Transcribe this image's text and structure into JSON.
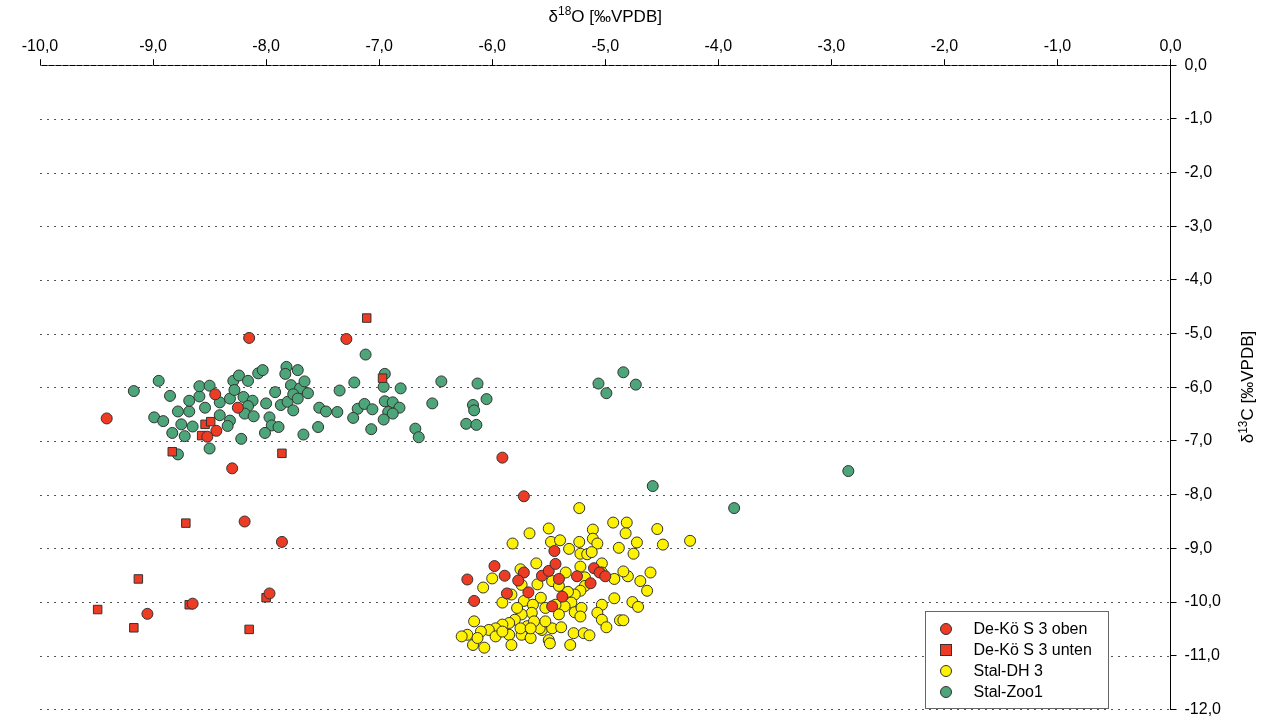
{
  "chart_data": {
    "type": "scatter",
    "xlabel": "δ$^{18}$O [‰VPDB]",
    "ylabel": "δ$^{13}$C [‰VPDB]",
    "xlim": [
      -10,
      0
    ],
    "ylim": [
      -12,
      0
    ],
    "xticks": [
      {
        "value": -10,
        "label": "-10,0"
      },
      {
        "value": -9,
        "label": "-9,0"
      },
      {
        "value": -8,
        "label": "-8,0"
      },
      {
        "value": -7,
        "label": "-7,0"
      },
      {
        "value": -6,
        "label": "-6,0"
      },
      {
        "value": -5,
        "label": "-5,0"
      },
      {
        "value": -4,
        "label": "-4,0"
      },
      {
        "value": -3,
        "label": "-3,0"
      },
      {
        "value": -2,
        "label": "-2,0"
      },
      {
        "value": -1,
        "label": "-1,0"
      },
      {
        "value": 0,
        "label": "0,0"
      }
    ],
    "yticks": [
      {
        "value": 0,
        "label": "0,0"
      },
      {
        "value": -1,
        "label": "-1,0"
      },
      {
        "value": -2,
        "label": "-2,0"
      },
      {
        "value": -3,
        "label": "-3,0"
      },
      {
        "value": -4,
        "label": "-4,0"
      },
      {
        "value": -5,
        "label": "-5,0"
      },
      {
        "value": -6,
        "label": "-6,0"
      },
      {
        "value": -7,
        "label": "-7,0"
      },
      {
        "value": -8,
        "label": "-8,0"
      },
      {
        "value": -9,
        "label": "-9,0"
      },
      {
        "value": -10,
        "label": "-10,0"
      },
      {
        "value": -11,
        "label": "-11,0"
      },
      {
        "value": -12,
        "label": "-12,0"
      }
    ],
    "grid": "y",
    "legend": "bottom right",
    "series": [
      {
        "name": "De-Kö S 3 oben",
        "color": "#ee3b24",
        "marker": "circle",
        "x": [
          -8.15,
          -7.29,
          -9.41,
          -8.45,
          -8.25,
          -8.44,
          -8.52,
          -8.3,
          -8.19,
          -7.86,
          -7.97,
          -8.65,
          -9.05,
          -5.91,
          -5.72,
          -5.45,
          -5.98,
          -6.22,
          -6.16,
          -5.89,
          -5.72,
          -5.77,
          -5.87,
          -5.68,
          -5.56,
          -5.5,
          -5.44,
          -5.41,
          -5.38,
          -5.47,
          -5.25,
          -5.1,
          -5.05,
          -5.0,
          -5.13
        ],
        "values": [
          -5.08,
          -5.1,
          -6.58,
          -6.13,
          -6.38,
          -6.81,
          -6.92,
          -7.51,
          -8.5,
          -8.88,
          -9.84,
          -10.03,
          -10.22,
          -7.31,
          -8.03,
          -9.05,
          -9.33,
          -9.58,
          -9.98,
          -9.51,
          -9.45,
          -9.6,
          -9.84,
          -9.82,
          -9.51,
          -9.42,
          -9.29,
          -9.57,
          -9.9,
          -10.08,
          -9.52,
          -9.37,
          -9.45,
          -9.52,
          -9.65
        ]
      },
      {
        "name": "De-Kö S 3 unten",
        "color": "#ee3b24",
        "marker": "square",
        "x": [
          -7.11,
          -6.97,
          -8.54,
          -8.49,
          -8.57,
          -8.83,
          -7.86,
          -8.71,
          -9.13,
          -8.68,
          -8.0,
          -9.49,
          -9.17,
          -8.15
        ],
        "values": [
          -4.71,
          -5.83,
          -6.69,
          -6.64,
          -6.9,
          -7.2,
          -7.23,
          -8.53,
          -9.57,
          -10.05,
          -9.92,
          -10.14,
          -10.48,
          -10.51
        ]
      },
      {
        "name": "Stal-DH 3",
        "color": "#fff200",
        "marker": "circle",
        "x": [
          -5.23,
          -4.93,
          -4.81,
          -4.54,
          -4.25,
          -4.49,
          -4.82,
          -4.72,
          -4.75,
          -4.88,
          -5.11,
          -5.5,
          -5.67,
          -5.82,
          -5.48,
          -5.4,
          -5.23,
          -5.32,
          -5.11,
          -5.07,
          -5.22,
          -5.16,
          -5.12,
          -5.03,
          -5.03,
          -4.92,
          -4.8,
          -4.84,
          -4.6,
          -4.69,
          -4.63,
          -4.92,
          -4.76,
          -4.71,
          -5.03,
          -5.07,
          -5.03,
          -4.99,
          -4.87,
          -4.84,
          -5.61,
          -5.75,
          -5.74,
          -6.0,
          -6.08,
          -5.91,
          -5.83,
          -5.72,
          -5.57,
          -5.6,
          -5.47,
          -5.41,
          -5.35,
          -5.22,
          -5.18,
          -5.18,
          -5.22,
          -5.27,
          -5.33,
          -5.3,
          -5.27,
          -5.21,
          -5.22,
          -5.36,
          -5.44,
          -5.53,
          -5.64,
          -5.65,
          -5.74,
          -5.8,
          -5.85,
          -5.91,
          -5.97,
          -6.03,
          -6.1,
          -6.16,
          -6.22,
          -6.27,
          -6.17,
          -6.07,
          -5.97,
          -5.85,
          -5.83,
          -5.74,
          -5.66,
          -5.56,
          -5.47,
          -5.39,
          -5.28,
          -5.19,
          -5.14,
          -5.5,
          -5.49,
          -5.58,
          -5.69,
          -5.31,
          -5.53,
          -5.63,
          -5.41,
          -5.75,
          -5.91,
          -6.13,
          -5.78,
          -5.66
        ],
        "values": [
          -8.25,
          -8.52,
          -8.52,
          -8.64,
          -8.86,
          -8.93,
          -8.72,
          -8.89,
          -9.1,
          -8.99,
          -8.65,
          -8.63,
          -8.72,
          -8.91,
          -8.88,
          -8.85,
          -8.88,
          -9.01,
          -8.82,
          -8.91,
          -9.1,
          -9.11,
          -9.07,
          -9.28,
          -9.45,
          -9.57,
          -9.52,
          -9.43,
          -9.45,
          -9.61,
          -9.79,
          -9.93,
          -10.0,
          -10.09,
          -10.05,
          -10.2,
          -10.33,
          -10.47,
          -10.34,
          -10.34,
          -9.28,
          -9.39,
          -9.68,
          -9.56,
          -9.73,
          -10.01,
          -9.86,
          -9.98,
          -9.92,
          -9.67,
          -9.61,
          -9.7,
          -9.45,
          -9.34,
          -9.54,
          -9.7,
          -9.79,
          -9.86,
          -9.81,
          -10.01,
          -10.19,
          -10.11,
          -10.27,
          -10.08,
          -10.05,
          -10.11,
          -10.05,
          -10.2,
          -10.23,
          -10.33,
          -10.39,
          -10.42,
          -10.49,
          -10.52,
          -10.55,
          -10.36,
          -10.61,
          -10.64,
          -10.8,
          -10.85,
          -10.64,
          -10.61,
          -10.8,
          -10.61,
          -10.67,
          -10.52,
          -10.49,
          -10.47,
          -10.58,
          -10.58,
          -10.62,
          -10.71,
          -10.77,
          -10.49,
          -10.45,
          -10.8,
          -10.36,
          -10.36,
          -10.23,
          -10.49,
          -10.55,
          -10.67,
          -10.11,
          -10.49
        ]
      },
      {
        "name": "Stal-Zoo1",
        "color": "#4da57a",
        "marker": "circle",
        "x": [
          -7.12,
          -8.95,
          -9.17,
          -8.85,
          -8.99,
          -8.91,
          -8.83,
          -8.72,
          -8.75,
          -8.78,
          -8.68,
          -8.68,
          -8.59,
          -8.59,
          -8.65,
          -8.54,
          -8.5,
          -8.41,
          -8.32,
          -8.29,
          -8.24,
          -8.16,
          -8.28,
          -8.41,
          -8.32,
          -8.34,
          -8.22,
          -8.5,
          -8.78,
          -8.2,
          -8.12,
          -8.16,
          -8.19,
          -8.11,
          -8.07,
          -8.03,
          -8.0,
          -7.97,
          -7.95,
          -8.01,
          -7.89,
          -7.92,
          -7.87,
          -7.82,
          -7.83,
          -7.72,
          -7.78,
          -7.7,
          -7.66,
          -7.81,
          -7.76,
          -7.72,
          -7.63,
          -7.76,
          -7.53,
          -7.47,
          -7.37,
          -7.54,
          -7.67,
          -7.35,
          -7.22,
          -7.19,
          -7.23,
          -7.13,
          -7.06,
          -7.07,
          -6.95,
          -6.96,
          -6.81,
          -6.95,
          -6.88,
          -6.82,
          -6.92,
          -6.88,
          -6.96,
          -6.68,
          -6.65,
          -6.45,
          -6.53,
          -6.13,
          -6.05,
          -6.17,
          -6.16,
          -6.23,
          -6.14,
          -5.06,
          -4.99,
          -4.84,
          -4.73,
          -4.58,
          -2.85,
          -3.86
        ],
        "values": [
          -5.39,
          -5.88,
          -6.07,
          -6.16,
          -6.56,
          -6.63,
          -6.85,
          -6.91,
          -6.69,
          -6.45,
          -6.45,
          -6.25,
          -6.17,
          -5.98,
          -6.73,
          -6.38,
          -5.97,
          -6.28,
          -6.21,
          -5.88,
          -5.78,
          -5.88,
          -6.05,
          -6.52,
          -6.62,
          -6.72,
          -6.96,
          -7.14,
          -7.25,
          -6.18,
          -6.25,
          -6.35,
          -6.49,
          -6.54,
          -5.74,
          -5.68,
          -6.3,
          -6.56,
          -6.71,
          -6.85,
          -6.74,
          -6.09,
          -6.33,
          -5.62,
          -5.75,
          -5.68,
          -5.96,
          -6.02,
          -5.89,
          -6.27,
          -6.13,
          -6.21,
          -6.11,
          -6.43,
          -6.38,
          -6.45,
          -6.46,
          -6.74,
          -6.88,
          -6.06,
          -5.91,
          -6.4,
          -6.57,
          -6.31,
          -6.41,
          -6.78,
          -5.75,
          -5.99,
          -6.02,
          -6.26,
          -6.28,
          -6.38,
          -6.46,
          -6.49,
          -6.6,
          -6.77,
          -6.93,
          -5.89,
          -6.3,
          -5.93,
          -6.22,
          -6.33,
          -6.43,
          -6.68,
          -6.7,
          -5.93,
          -6.11,
          -5.72,
          -5.95,
          -7.84,
          -7.56,
          -8.25
        ]
      }
    ]
  }
}
